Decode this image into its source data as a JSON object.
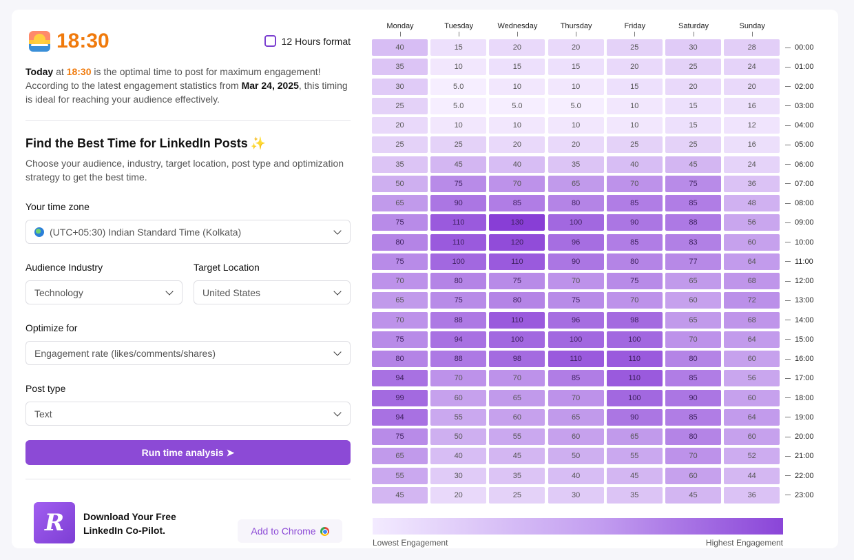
{
  "header": {
    "time": "18:30",
    "toggle_label": "12 Hours format"
  },
  "summary": {
    "today": "Today",
    "at": " at ",
    "time": "18:30",
    "line_a": " is the optimal time to post for maximum engagement! According to the latest engagement statistics from ",
    "date": "Mar 24, 2025",
    "line_b": ", this timing is ideal for reaching your audience effectively."
  },
  "finder": {
    "title": "Find the Best Time for LinkedIn Posts",
    "sparkle": "✨",
    "description": "Choose your audience, industry, target location, post type and optimization strategy to get the best time."
  },
  "form": {
    "timezone_label": "Your time zone",
    "timezone_value": "(UTC+05:30) Indian Standard Time (Kolkata)",
    "industry_label": "Audience Industry",
    "industry_value": "Technology",
    "location_label": "Target Location",
    "location_value": "United States",
    "optimize_label": "Optimize for",
    "optimize_value": "Engagement rate (likes/comments/shares)",
    "posttype_label": "Post type",
    "posttype_value": "Text",
    "run_button": "Run time analysis ➤"
  },
  "promo": {
    "logo_letter": "R",
    "text": "Download Your Free LinkedIn Co-Pilot.",
    "chrome_button": "Add to Chrome"
  },
  "colors": {
    "accent": "#8c4ad6",
    "clock": "#f07a0c",
    "heat_low": "#f3ebff",
    "heat_high": "#8a45d8"
  },
  "chart_data": {
    "type": "heatmap",
    "title": "",
    "x_categories": [
      "Monday",
      "Tuesday",
      "Wednesday",
      "Thursday",
      "Friday",
      "Saturday",
      "Sunday"
    ],
    "y_categories": [
      "00:00",
      "01:00",
      "02:00",
      "03:00",
      "04:00",
      "05:00",
      "06:00",
      "07:00",
      "08:00",
      "09:00",
      "10:00",
      "11:00",
      "12:00",
      "13:00",
      "14:00",
      "15:00",
      "16:00",
      "17:00",
      "18:00",
      "19:00",
      "20:00",
      "21:00",
      "22:00",
      "23:00"
    ],
    "values": [
      [
        "40",
        "15",
        "20",
        "20",
        "25",
        "30",
        "28"
      ],
      [
        "35",
        "10",
        "15",
        "15",
        "20",
        "25",
        "24"
      ],
      [
        "30",
        "5.0",
        "10",
        "10",
        "15",
        "20",
        "20"
      ],
      [
        "25",
        "5.0",
        "5.0",
        "5.0",
        "10",
        "15",
        "16"
      ],
      [
        "20",
        "10",
        "10",
        "10",
        "10",
        "15",
        "12"
      ],
      [
        "25",
        "25",
        "20",
        "20",
        "25",
        "25",
        "16"
      ],
      [
        "35",
        "45",
        "40",
        "35",
        "40",
        "45",
        "24"
      ],
      [
        "50",
        "75",
        "70",
        "65",
        "70",
        "75",
        "36"
      ],
      [
        "65",
        "90",
        "85",
        "80",
        "85",
        "85",
        "48"
      ],
      [
        "75",
        "110",
        "130",
        "100",
        "90",
        "88",
        "56"
      ],
      [
        "80",
        "110",
        "120",
        "96",
        "85",
        "83",
        "60"
      ],
      [
        "75",
        "100",
        "110",
        "90",
        "80",
        "77",
        "64"
      ],
      [
        "70",
        "80",
        "75",
        "70",
        "75",
        "65",
        "68"
      ],
      [
        "65",
        "75",
        "80",
        "75",
        "70",
        "60",
        "72"
      ],
      [
        "70",
        "88",
        "110",
        "96",
        "98",
        "65",
        "68"
      ],
      [
        "75",
        "94",
        "100",
        "100",
        "100",
        "70",
        "64"
      ],
      [
        "80",
        "88",
        "98",
        "110",
        "110",
        "80",
        "60"
      ],
      [
        "94",
        "70",
        "70",
        "85",
        "110",
        "85",
        "56"
      ],
      [
        "99",
        "60",
        "65",
        "70",
        "100",
        "90",
        "60"
      ],
      [
        "94",
        "55",
        "60",
        "65",
        "90",
        "85",
        "64"
      ],
      [
        "75",
        "50",
        "55",
        "60",
        "65",
        "80",
        "60"
      ],
      [
        "65",
        "40",
        "45",
        "50",
        "55",
        "70",
        "52"
      ],
      [
        "55",
        "30",
        "35",
        "40",
        "45",
        "60",
        "44"
      ],
      [
        "45",
        "20",
        "25",
        "30",
        "35",
        "45",
        "36"
      ]
    ],
    "legend_low": "Lowest Engagement",
    "legend_high": "Highest Engagement"
  }
}
